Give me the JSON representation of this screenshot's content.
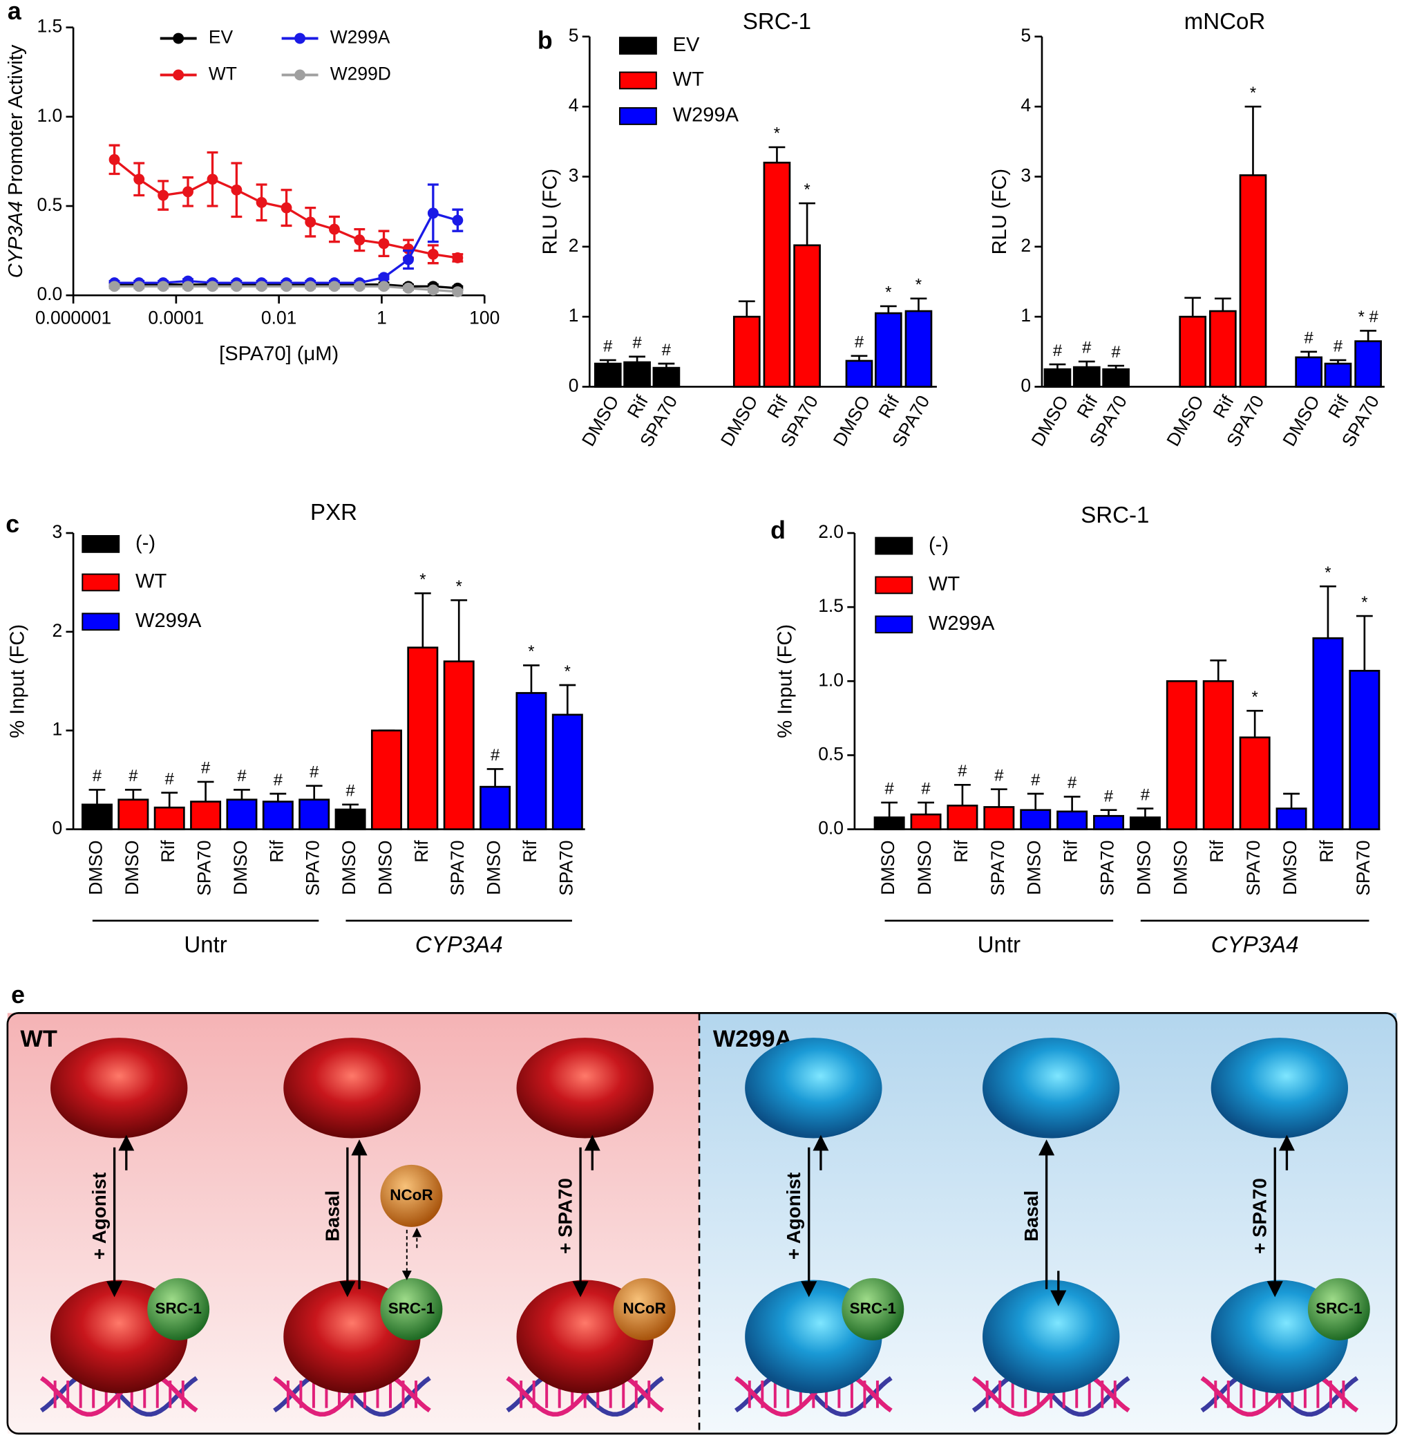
{
  "chart_data": [
    {
      "panel": "a",
      "type": "line",
      "ylabel": [
        "CYP3A4",
        "Promoter Activity"
      ],
      "xlabel": "[SPA70] (μM)",
      "xlog": true,
      "xlim": [
        1e-06,
        100
      ],
      "xticks": [
        1e-06,
        0.0001,
        0.01,
        1,
        100
      ],
      "ylim": [
        0,
        1.5
      ],
      "yticks": [
        {
          "value": 0,
          "label": "0.0"
        },
        0.5,
        {
          "value": 1,
          "label": "1.0"
        },
        1.5
      ],
      "x": [
        6.3e-06,
        1.9e-05,
        5.6e-05,
        0.00017,
        0.00051,
        0.0015,
        0.0046,
        0.014,
        0.041,
        0.12,
        0.37,
        1.1,
        3.3,
        10,
        30
      ],
      "series": [
        {
          "name": "EV",
          "color": "#000000",
          "values": [
            0.06,
            0.06,
            0.06,
            0.06,
            0.06,
            0.06,
            0.06,
            0.06,
            0.06,
            0.06,
            0.06,
            0.06,
            0.05,
            0.05,
            0.04
          ],
          "errors": [
            0.01,
            0.01,
            0.01,
            0.01,
            0.01,
            0.01,
            0.01,
            0.01,
            0.01,
            0.01,
            0.01,
            0.01,
            0.01,
            0.01,
            0.01
          ]
        },
        {
          "name": "WT",
          "color": "#e8141b",
          "values": [
            0.76,
            0.65,
            0.56,
            0.58,
            0.65,
            0.59,
            0.52,
            0.49,
            0.41,
            0.37,
            0.31,
            0.29,
            0.26,
            0.23,
            0.21
          ],
          "errors": [
            0.08,
            0.09,
            0.08,
            0.08,
            0.15,
            0.15,
            0.1,
            0.1,
            0.08,
            0.07,
            0.06,
            0.07,
            0.05,
            0.05,
            0.02
          ]
        },
        {
          "name": "W299A",
          "color": "#1a1ae6",
          "values": [
            0.07,
            0.07,
            0.07,
            0.08,
            0.07,
            0.07,
            0.07,
            0.07,
            0.07,
            0.07,
            0.07,
            0.1,
            0.2,
            0.46,
            0.42
          ],
          "errors": [
            0.01,
            0.01,
            0.01,
            0.01,
            0.01,
            0.01,
            0.01,
            0.01,
            0.01,
            0.01,
            0.01,
            0.01,
            0.05,
            0.16,
            0.06
          ]
        },
        {
          "name": "W299D",
          "color": "#a0a0a0",
          "values": [
            0.05,
            0.05,
            0.05,
            0.05,
            0.05,
            0.05,
            0.05,
            0.05,
            0.05,
            0.05,
            0.05,
            0.05,
            0.04,
            0.03,
            0.02
          ],
          "errors": [
            0.01,
            0.01,
            0.01,
            0.01,
            0.01,
            0.01,
            0.01,
            0.01,
            0.01,
            0.01,
            0.01,
            0.01,
            0.01,
            0.01,
            0.01
          ]
        }
      ]
    },
    {
      "panel": "b",
      "type": "bar",
      "title": "SRC-1",
      "ylabel": "RLU (FC)",
      "ylim": [
        0,
        5
      ],
      "yticks": [
        0,
        1,
        2,
        3,
        4,
        5
      ],
      "categories": [
        "DMSO",
        "Rif",
        "SPA70",
        "DMSO",
        "Rif",
        "SPA70",
        "DMSO",
        "Rif",
        "SPA70"
      ],
      "series": [
        {
          "name": "EV",
          "color": "#000000",
          "values": [
            0.33,
            0.35,
            0.27,
            null,
            null,
            null,
            null,
            null,
            null
          ],
          "errors": [
            0.05,
            0.08,
            0.06,
            null,
            null,
            null,
            null,
            null,
            null
          ],
          "annotations": [
            "#",
            "#",
            "#",
            null,
            null,
            null,
            null,
            null,
            null
          ]
        },
        {
          "name": "WT",
          "color": "#ff0000",
          "values": [
            null,
            null,
            null,
            1.0,
            3.2,
            2.02,
            null,
            null,
            null
          ],
          "errors": [
            null,
            null,
            null,
            0.22,
            0.22,
            0.6,
            null,
            null,
            null
          ],
          "annotations": [
            null,
            null,
            null,
            null,
            "*",
            "*",
            null,
            null,
            null
          ]
        },
        {
          "name": "W299A",
          "color": "#0000ff",
          "values": [
            null,
            null,
            null,
            null,
            null,
            null,
            0.37,
            1.05,
            1.08
          ],
          "errors": [
            null,
            null,
            null,
            null,
            null,
            null,
            0.07,
            0.1,
            0.18
          ],
          "annotations": [
            null,
            null,
            null,
            null,
            null,
            null,
            "#",
            "*",
            "*"
          ]
        }
      ]
    },
    {
      "type": "bar",
      "title": "mNCoR",
      "ylabel": "RLU (FC)",
      "ylim": [
        0,
        5
      ],
      "yticks": [
        0,
        1,
        2,
        3,
        4,
        5
      ],
      "categories": [
        "DMSO",
        "Rif",
        "SPA70",
        "DMSO",
        "Rif",
        "SPA70",
        "DMSO",
        "Rif",
        "SPA70"
      ],
      "series": [
        {
          "color": "#000000",
          "values": [
            0.25,
            0.28,
            0.25,
            null,
            null,
            null,
            null,
            null,
            null
          ],
          "errors": [
            0.07,
            0.08,
            0.05,
            null,
            null,
            null,
            null,
            null,
            null
          ],
          "annotations": [
            "#",
            "#",
            "#",
            null,
            null,
            null,
            null,
            null,
            null
          ]
        },
        {
          "color": "#ff0000",
          "values": [
            null,
            null,
            null,
            1.0,
            1.08,
            3.02,
            null,
            null,
            null
          ],
          "errors": [
            null,
            null,
            null,
            0.27,
            0.18,
            0.98,
            null,
            null,
            null
          ],
          "annotations": [
            null,
            null,
            null,
            null,
            null,
            "*",
            null,
            null,
            null
          ]
        },
        {
          "color": "#0000ff",
          "values": [
            null,
            null,
            null,
            null,
            null,
            null,
            0.42,
            0.33,
            0.65
          ],
          "errors": [
            null,
            null,
            null,
            null,
            null,
            null,
            0.08,
            0.05,
            0.15
          ],
          "annotations": [
            null,
            null,
            null,
            null,
            null,
            null,
            "#",
            "#",
            "* #"
          ]
        }
      ]
    },
    {
      "panel": "c",
      "type": "bar",
      "title": "PXR",
      "ylabel": "% Input (FC)",
      "ylim": [
        0,
        3
      ],
      "yticks": [
        0,
        1,
        2,
        3
      ],
      "categories": [
        "DMSO",
        "DMSO",
        "Rif",
        "SPA70",
        "DMSO",
        "Rif",
        "SPA70",
        "DMSO",
        "DMSO",
        "Rif",
        "SPA70",
        "DMSO",
        "Rif",
        "SPA70"
      ],
      "group_labels": [
        "Untr",
        "CYP3A4"
      ],
      "series": [
        {
          "name": "(-)",
          "color": "#000000",
          "values": [
            0.25,
            null,
            null,
            null,
            null,
            null,
            null,
            0.2,
            null,
            null,
            null,
            null,
            null,
            null
          ],
          "errors": [
            0.15,
            null,
            null,
            null,
            null,
            null,
            null,
            0.05,
            null,
            null,
            null,
            null,
            null,
            null
          ],
          "annotations": [
            "#",
            null,
            null,
            null,
            null,
            null,
            null,
            "#",
            null,
            null,
            null,
            null,
            null,
            null
          ]
        },
        {
          "name": "WT",
          "color": "#ff0000",
          "values": [
            null,
            0.3,
            0.22,
            0.28,
            null,
            null,
            null,
            null,
            1.0,
            1.84,
            1.7,
            null,
            null,
            null
          ],
          "errors": [
            null,
            0.1,
            0.15,
            0.2,
            null,
            null,
            null,
            null,
            0,
            0.55,
            0.62,
            null,
            null,
            null
          ],
          "annotations": [
            null,
            "#",
            "#",
            "#",
            null,
            null,
            null,
            null,
            null,
            "*",
            "*",
            null,
            null,
            null
          ]
        },
        {
          "name": "W299A",
          "color": "#0000ff",
          "values": [
            null,
            null,
            null,
            null,
            0.3,
            0.28,
            0.3,
            null,
            null,
            null,
            null,
            0.43,
            1.38,
            1.16
          ],
          "errors": [
            null,
            null,
            null,
            null,
            0.1,
            0.08,
            0.14,
            null,
            null,
            null,
            null,
            0.18,
            0.28,
            0.3
          ],
          "annotations": [
            null,
            null,
            null,
            null,
            "#",
            "#",
            "#",
            null,
            null,
            null,
            null,
            "#",
            "*",
            "*"
          ]
        }
      ]
    },
    {
      "panel": "d",
      "type": "bar",
      "title": "SRC-1",
      "ylabel": "% Input (FC)",
      "ylim": [
        0,
        2
      ],
      "yticks": [
        {
          "value": 0,
          "label": "0.0"
        },
        0.5,
        {
          "value": 1,
          "label": "1.0"
        },
        1.5,
        {
          "value": 2,
          "label": "2.0"
        }
      ],
      "categories": [
        "DMSO",
        "DMSO",
        "Rif",
        "SPA70",
        "DMSO",
        "Rif",
        "SPA70",
        "DMSO",
        "DMSO",
        "Rif",
        "SPA70",
        "DMSO",
        "Rif",
        "SPA70"
      ],
      "group_labels": [
        "Untr",
        "CYP3A4"
      ],
      "series": [
        {
          "name": "(-)",
          "color": "#000000",
          "values": [
            0.08,
            null,
            null,
            null,
            null,
            null,
            null,
            0.08,
            null,
            null,
            null,
            null,
            null,
            null
          ],
          "errors": [
            0.1,
            null,
            null,
            null,
            null,
            null,
            null,
            0.06,
            null,
            null,
            null,
            null,
            null,
            null
          ],
          "annotations": [
            "#",
            null,
            null,
            null,
            null,
            null,
            null,
            "#",
            null,
            null,
            null,
            null,
            null,
            null
          ]
        },
        {
          "name": "WT",
          "color": "#ff0000",
          "values": [
            null,
            0.1,
            0.16,
            0.15,
            null,
            null,
            null,
            null,
            1.0,
            1.0,
            0.62,
            null,
            null,
            null
          ],
          "errors": [
            null,
            0.08,
            0.14,
            0.12,
            null,
            null,
            null,
            null,
            0,
            0.14,
            0.18,
            null,
            null,
            null
          ],
          "annotations": [
            null,
            "#",
            "#",
            "#",
            null,
            null,
            null,
            null,
            null,
            null,
            "*",
            null,
            null,
            null
          ]
        },
        {
          "name": "W299A",
          "color": "#0000ff",
          "values": [
            null,
            null,
            null,
            null,
            0.13,
            0.12,
            0.09,
            null,
            null,
            null,
            null,
            0.14,
            1.29,
            1.07
          ],
          "errors": [
            null,
            null,
            null,
            null,
            0.11,
            0.1,
            0.04,
            null,
            null,
            null,
            null,
            0.1,
            0.35,
            0.37
          ],
          "annotations": [
            null,
            null,
            null,
            null,
            "#",
            "#",
            "#",
            null,
            null,
            null,
            null,
            null,
            "*",
            "*"
          ]
        }
      ]
    }
  ],
  "diagram": {
    "panel": "e",
    "sections": [
      "WT",
      "W299A"
    ],
    "arrow_labels": [
      "+ Agonist",
      "Basal",
      "+ SPA70",
      "+ Agonist",
      "Basal",
      "+ SPA70"
    ],
    "proteins": [
      "SRC-1",
      "NCoR"
    ]
  }
}
